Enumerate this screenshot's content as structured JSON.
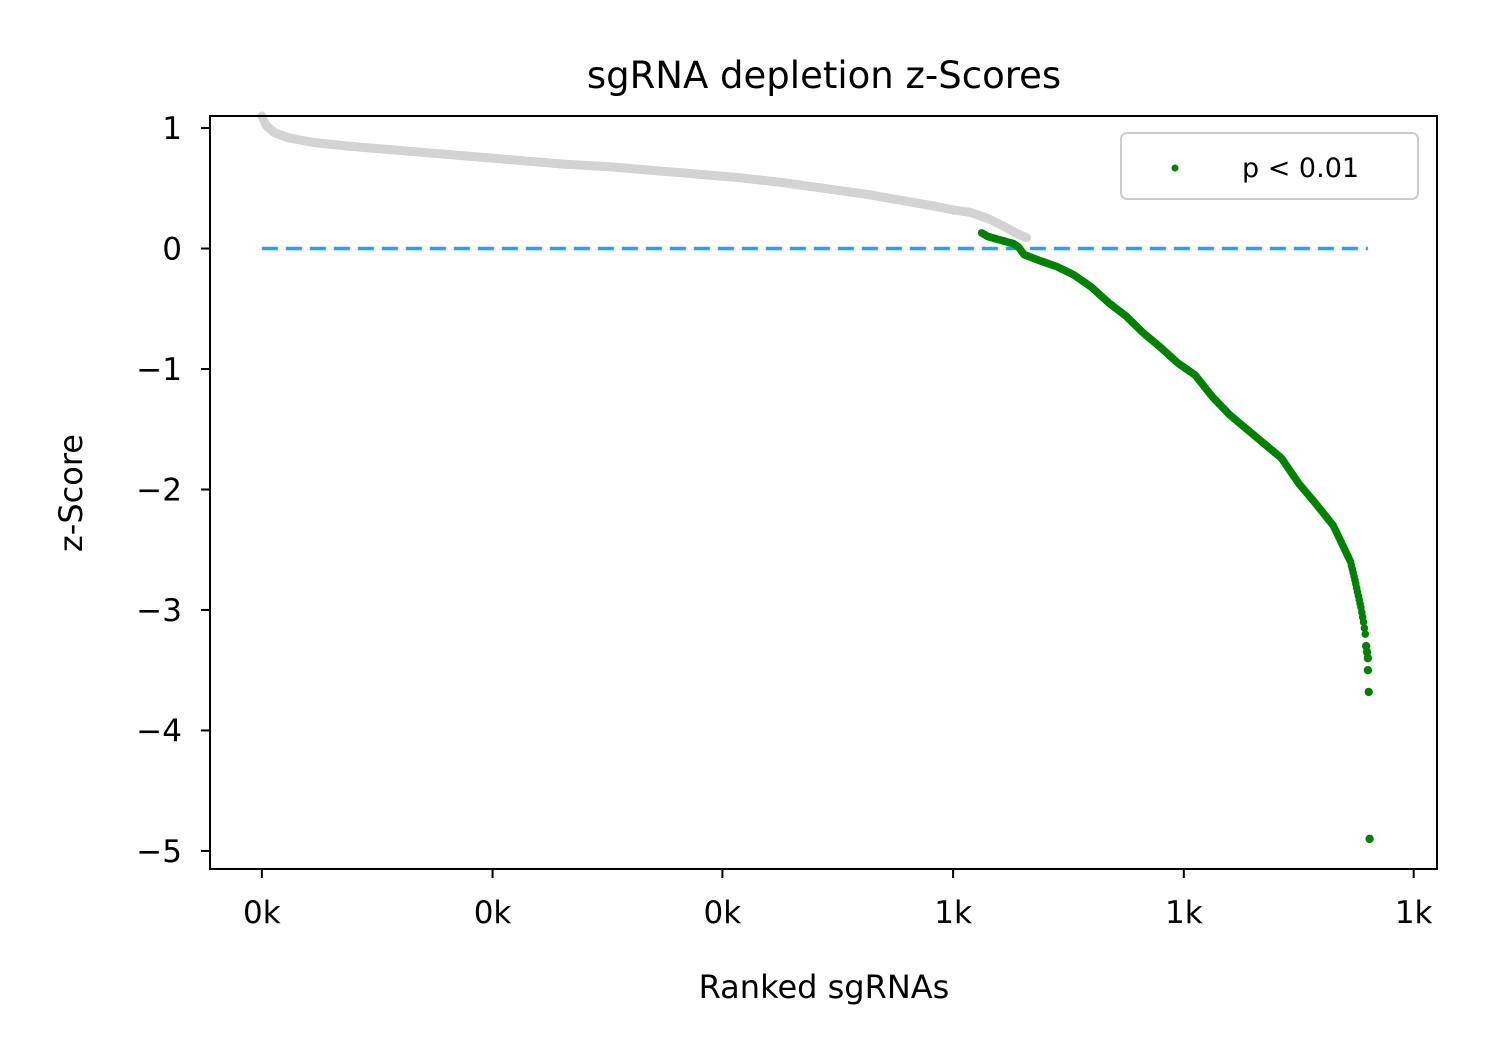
{
  "chart_data": {
    "type": "scatter",
    "title": "sgRNA depletion z-Scores",
    "xlabel": "Ranked sgRNAs",
    "ylabel": "z-Score",
    "xlim": [
      -60,
      1360
    ],
    "ylim": [
      -5.15,
      1.1
    ],
    "x_ticks": [
      0,
      267,
      533,
      800,
      1067,
      1333
    ],
    "x_tick_labels": [
      "0k",
      "0k",
      "0k",
      "1k",
      "1k",
      "1k"
    ],
    "y_ticks": [
      1,
      0,
      -1,
      -2,
      -3,
      -4,
      -5
    ],
    "y_tick_labels": [
      "1",
      "0",
      "−1",
      "−2",
      "−3",
      "−4",
      "−5"
    ],
    "grid": false,
    "legend": {
      "position": "upper right",
      "entries": [
        "p < 0.01"
      ]
    },
    "reference_line": {
      "y": 0,
      "x_range": [
        0,
        1280
      ],
      "style": "dashed",
      "color": "#3399ff"
    },
    "series": [
      {
        "role": "non-significant",
        "color": "#d3d3d3",
        "curve": [
          [
            0,
            1.1
          ],
          [
            5,
            1.02
          ],
          [
            15,
            0.96
          ],
          [
            30,
            0.92
          ],
          [
            60,
            0.88
          ],
          [
            100,
            0.85
          ],
          [
            150,
            0.82
          ],
          [
            200,
            0.79
          ],
          [
            250,
            0.76
          ],
          [
            300,
            0.73
          ],
          [
            350,
            0.7
          ],
          [
            400,
            0.68
          ],
          [
            450,
            0.65
          ],
          [
            500,
            0.62
          ],
          [
            550,
            0.59
          ],
          [
            600,
            0.55
          ],
          [
            650,
            0.5
          ],
          [
            700,
            0.45
          ],
          [
            740,
            0.4
          ],
          [
            780,
            0.35
          ],
          [
            800,
            0.32
          ],
          [
            820,
            0.3
          ],
          [
            840,
            0.25
          ],
          [
            860,
            0.18
          ],
          [
            875,
            0.12
          ],
          [
            885,
            0.09
          ]
        ]
      },
      {
        "name": "p < 0.01",
        "color": "#008000",
        "curve": [
          [
            833,
            0.13
          ],
          [
            840,
            0.1
          ],
          [
            850,
            0.08
          ],
          [
            860,
            0.06
          ],
          [
            870,
            0.04
          ],
          [
            876,
            0.01
          ],
          [
            882,
            -0.05
          ],
          [
            900,
            -0.1
          ],
          [
            920,
            -0.15
          ],
          [
            940,
            -0.22
          ],
          [
            960,
            -0.32
          ],
          [
            980,
            -0.45
          ],
          [
            1000,
            -0.56
          ],
          [
            1020,
            -0.7
          ],
          [
            1040,
            -0.82
          ],
          [
            1060,
            -0.95
          ],
          [
            1080,
            -1.05
          ],
          [
            1100,
            -1.23
          ],
          [
            1120,
            -1.38
          ],
          [
            1140,
            -1.5
          ],
          [
            1160,
            -1.62
          ],
          [
            1180,
            -1.74
          ],
          [
            1200,
            -1.95
          ],
          [
            1220,
            -2.12
          ],
          [
            1240,
            -2.3
          ],
          [
            1250,
            -2.45
          ],
          [
            1260,
            -2.6
          ],
          [
            1265,
            -2.75
          ],
          [
            1268,
            -2.85
          ],
          [
            1272,
            -2.98
          ],
          [
            1275,
            -3.1
          ],
          [
            1277,
            -3.2
          ]
        ],
        "outliers": [
          [
            1278,
            -3.3
          ],
          [
            1279,
            -3.35
          ],
          [
            1280,
            -3.4
          ],
          [
            1280,
            -3.5
          ],
          [
            1281,
            -3.68
          ],
          [
            1282,
            -4.9
          ]
        ]
      }
    ]
  }
}
